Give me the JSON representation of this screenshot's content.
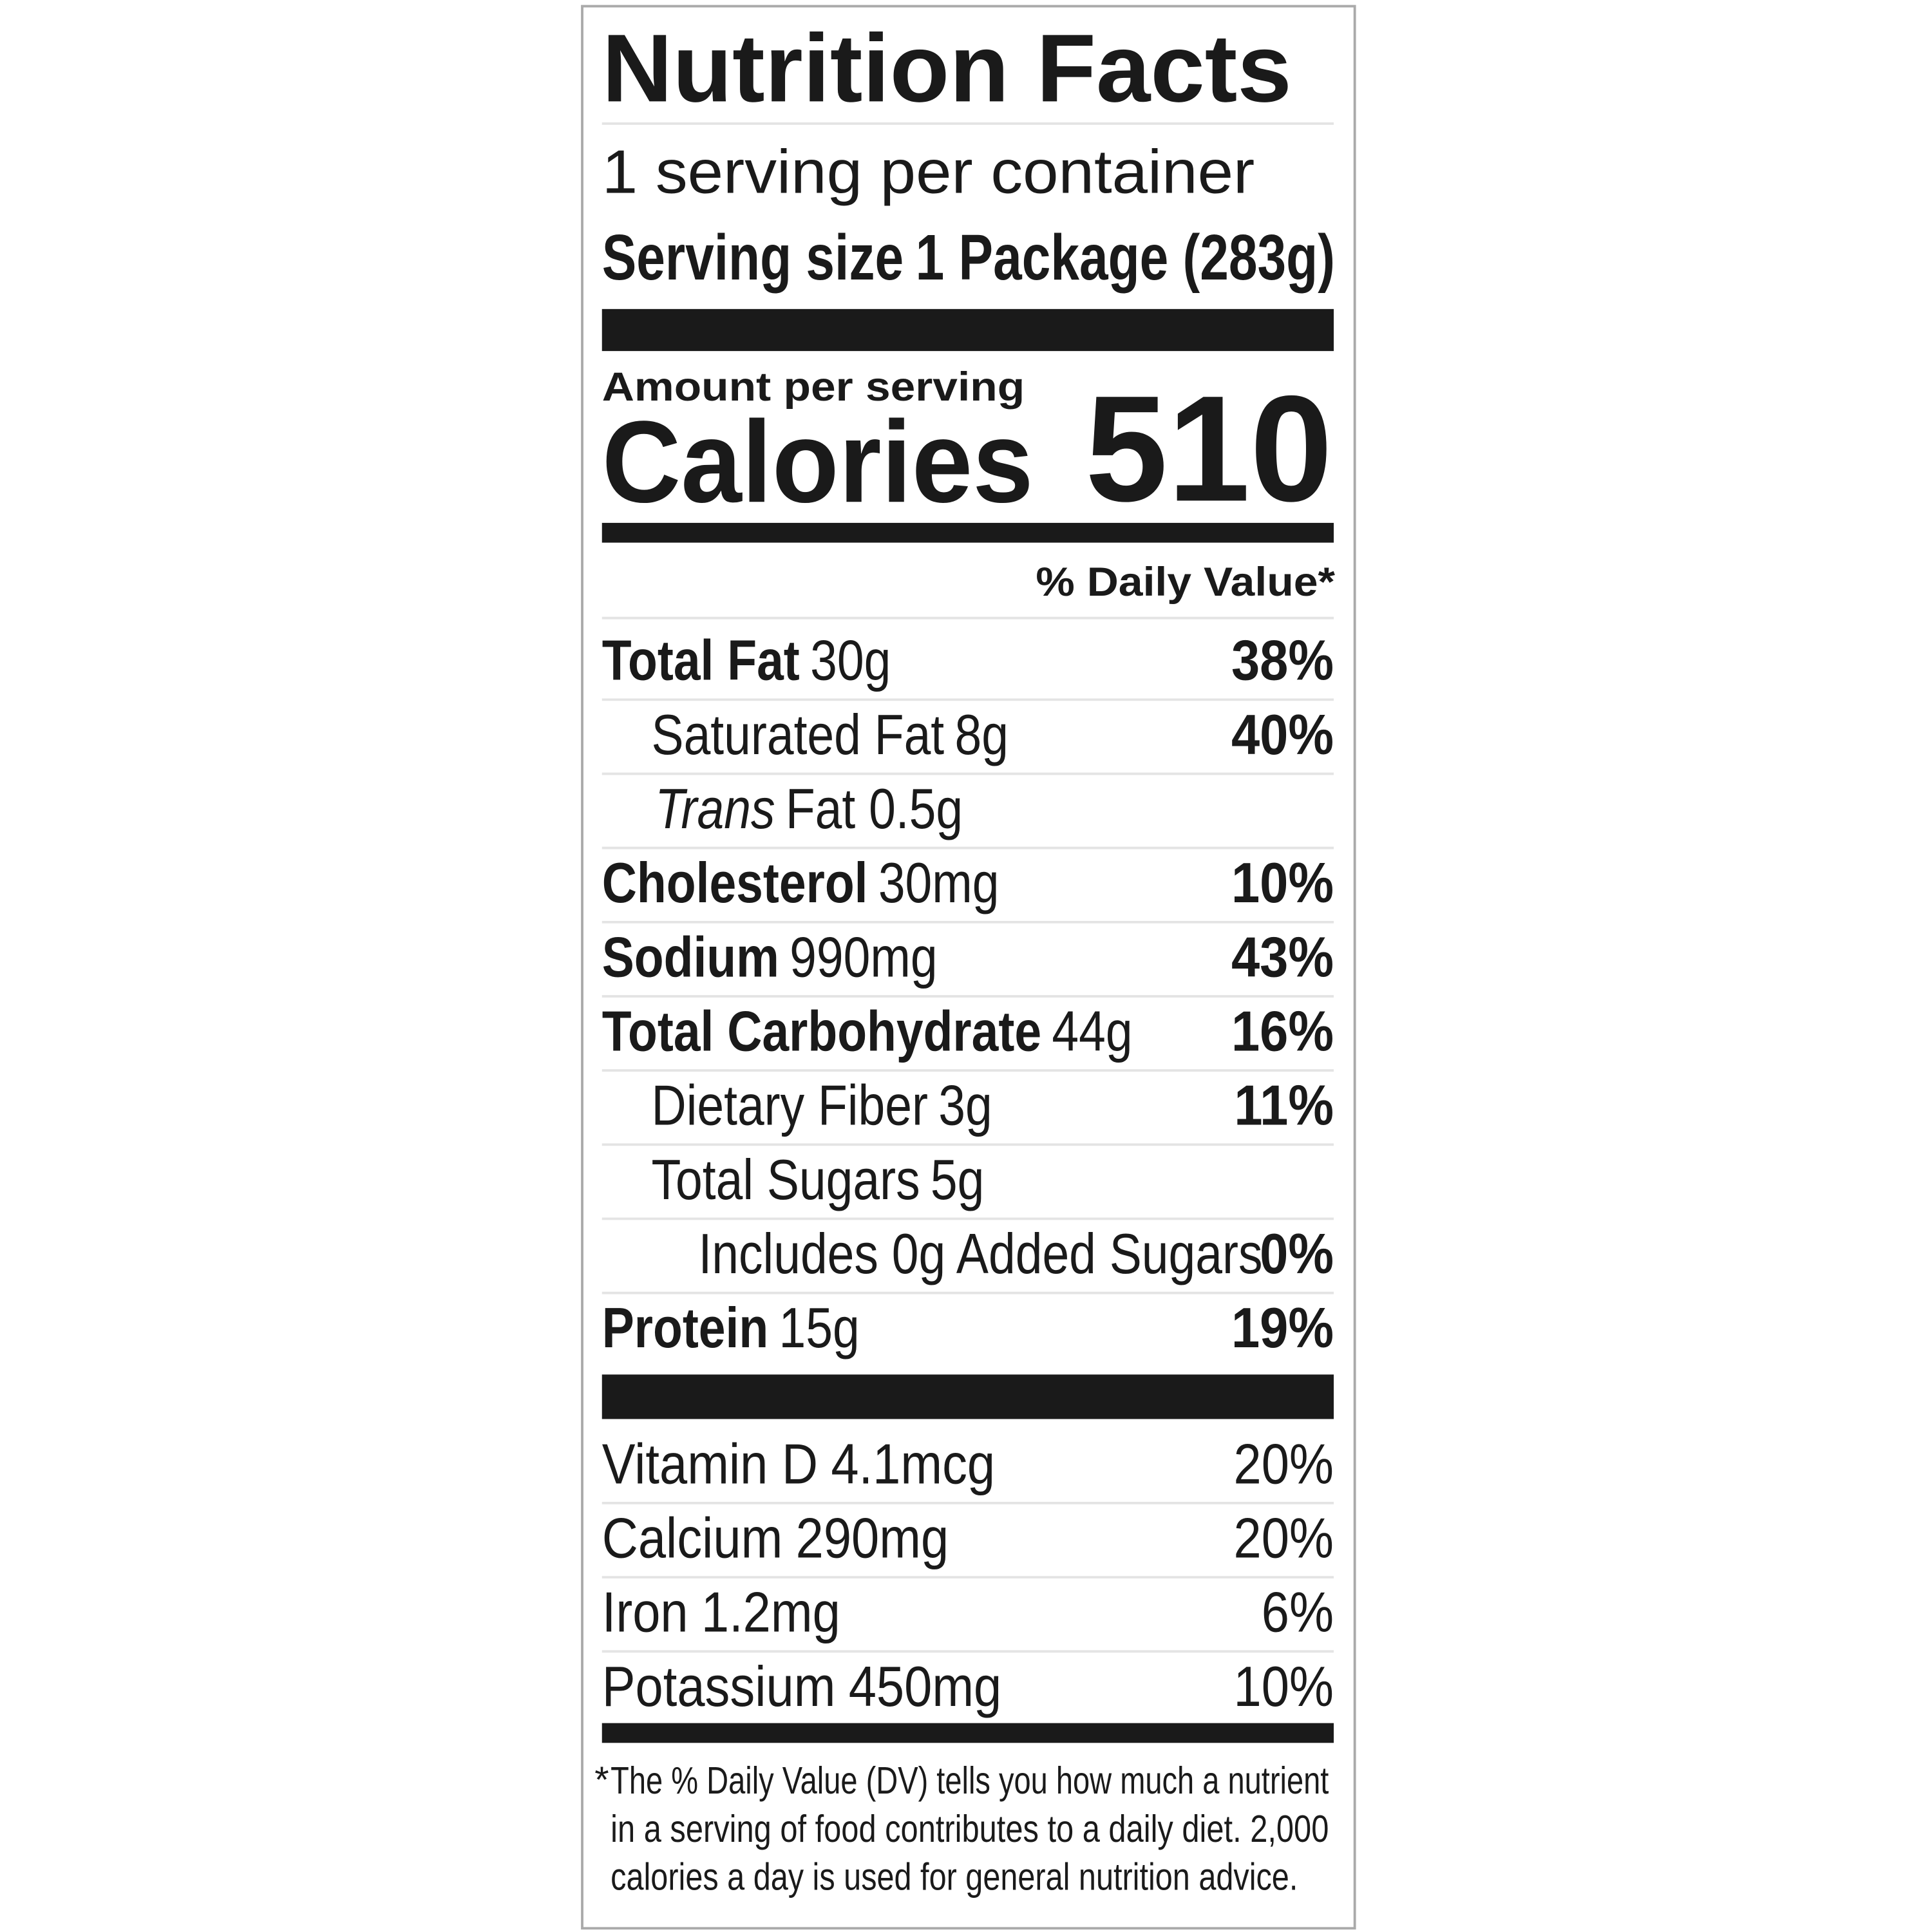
{
  "title": "Nutrition Facts",
  "servings_per_container": "1 serving per container",
  "serving_size": {
    "label": "Serving size",
    "value": "1 Package (283g)"
  },
  "amount_per_serving": "Amount per serving",
  "calories": {
    "label": "Calories",
    "value": "510"
  },
  "daily_value_header": "% Daily Value*",
  "nutrients": [
    {
      "name": "Total Fat",
      "amount": "30g",
      "dv": "38%"
    },
    {
      "name": "Saturated Fat",
      "amount": "8g",
      "dv": "40%"
    },
    {
      "name": "Trans",
      "amount": "Fat 0.5g"
    },
    {
      "name": "Cholesterol",
      "amount": "30mg",
      "dv": "10%"
    },
    {
      "name": "Sodium",
      "amount": "990mg",
      "dv": "43%"
    },
    {
      "name": "Total Carbohydrate",
      "amount": "44g",
      "dv": "16%"
    },
    {
      "name": "Dietary Fiber",
      "amount": "3g",
      "dv": "11%"
    },
    {
      "name": "Total Sugars",
      "amount": "5g"
    },
    {
      "name": "Includes 0g Added Sugars",
      "dv": "0%"
    },
    {
      "name": "Protein",
      "amount": "15g",
      "dv": "19%"
    }
  ],
  "vitamins": [
    {
      "name": "Vitamin D",
      "amount": "4.1mcg",
      "dv": "20%"
    },
    {
      "name": "Calcium",
      "amount": "290mg",
      "dv": "20%"
    },
    {
      "name": "Iron",
      "amount": "1.2mg",
      "dv": "6%"
    },
    {
      "name": "Potassium",
      "amount": "450mg",
      "dv": "10%"
    }
  ],
  "footnote": {
    "marker": "*",
    "lines": [
      "The % Daily Value (DV) tells you how much a nutrient",
      "in a serving of food contributes to a daily diet. 2,000",
      "calories a day is used for general nutrition advice."
    ]
  }
}
